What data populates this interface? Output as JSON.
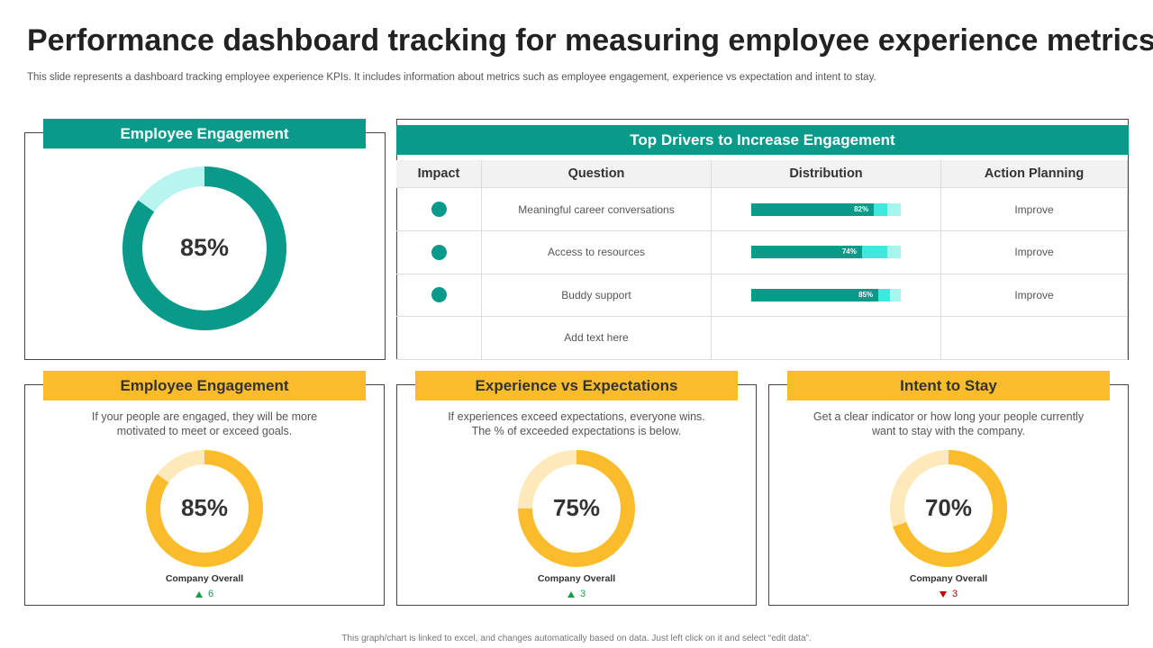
{
  "header": {
    "title": "Performance dashboard tracking for measuring employee experience metrics",
    "subtitle": "This slide represents a dashboard tracking employee experience KPIs. It includes information about metrics such as employee engagement, experience vs expectation and intent to stay."
  },
  "engagement_panel": {
    "title": "Employee Engagement",
    "value": 85,
    "value_label": "85%"
  },
  "drivers_panel": {
    "title": "Top Drivers to Increase Engagement",
    "columns": [
      "Impact",
      "Question",
      "Distribution",
      "Action Planning"
    ],
    "rows": [
      {
        "question": "Meaningful career conversations",
        "distribution": [
          82,
          9,
          9
        ],
        "distribution_label": "82%",
        "action": "Improve"
      },
      {
        "question": "Access to resources",
        "distribution": [
          74,
          17,
          9
        ],
        "distribution_label": "74%",
        "action": "Improve"
      },
      {
        "question": "Buddy support",
        "distribution": [
          85,
          8,
          7
        ],
        "distribution_label": "85%",
        "action": "Improve"
      },
      {
        "question": "Add text here"
      }
    ]
  },
  "kpi_panels": [
    {
      "title": "Employee Engagement",
      "description": [
        "If your people are engaged, they will be more",
        "motivated to meet or exceed goals."
      ],
      "value": 85,
      "value_label": "85%",
      "footer_label": "Company Overall",
      "change": 6,
      "trend": "up"
    },
    {
      "title": "Experience vs Expectations",
      "description": [
        "If experiences exceed expectations, everyone wins.",
        "The % of exceeded expectations is below."
      ],
      "value": 75,
      "value_label": "75%",
      "footer_label": "Company Overall",
      "change": 3,
      "trend": "up"
    },
    {
      "title": "Intent to Stay",
      "description": [
        "Get a clear indicator or how long your people currently",
        "want to stay with the company."
      ],
      "value": 70,
      "value_label": "70%",
      "footer_label": "Company Overall",
      "change": 3,
      "trend": "down"
    }
  ],
  "footer": "This graph/chart is linked to excel, and changes automatically based on data. Just left click on it and select “edit data”."
}
